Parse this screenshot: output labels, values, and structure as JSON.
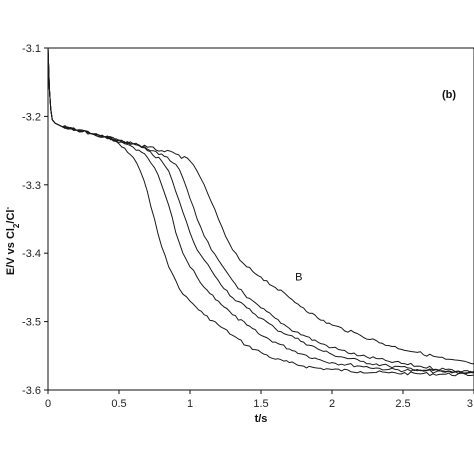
{
  "chart_data": {
    "type": "line",
    "panel_label": "(b)",
    "xlabel": "t/s",
    "ylabel_main": "E/V vs Cl",
    "ylabel_sub": "2",
    "ylabel_tail": "/Cl",
    "ylabel_sup": "-",
    "xlim": [
      0,
      3
    ],
    "ylim": [
      -3.6,
      -3.1
    ],
    "x_ticks": [
      0,
      0.5,
      1,
      1.5,
      2,
      2.5,
      3
    ],
    "x_tick_labels": [
      "0",
      "0.5",
      "1",
      "1.5",
      "2",
      "2.5",
      "3"
    ],
    "y_ticks": [
      -3.6,
      -3.5,
      -3.4,
      -3.3,
      -3.2,
      -3.1
    ],
    "y_tick_labels": [
      "-3.6",
      "-3.5",
      "-3.4",
      "-3.3",
      "-3.2",
      "-3.1"
    ],
    "grid": false,
    "annotation": {
      "text": "B",
      "x": 1.74,
      "y": -3.44
    },
    "series": [
      {
        "x": [
          0,
          0.01,
          0.02,
          0.03,
          0.05,
          0.1,
          0.2,
          0.3,
          0.4,
          0.5,
          0.6,
          0.65,
          0.7,
          0.75,
          0.8,
          0.85,
          0.9,
          0.95,
          1.0,
          1.1,
          1.2,
          1.3,
          1.4,
          1.5,
          1.6,
          1.7,
          1.8,
          1.9,
          2.0,
          2.2,
          2.4,
          2.6,
          2.8,
          3.0
        ],
        "y": [
          -3.1,
          -3.16,
          -3.19,
          -3.205,
          -3.21,
          -3.215,
          -3.22,
          -3.225,
          -3.23,
          -3.24,
          -3.26,
          -3.28,
          -3.31,
          -3.35,
          -3.39,
          -3.42,
          -3.44,
          -3.46,
          -3.47,
          -3.49,
          -3.505,
          -3.52,
          -3.535,
          -3.545,
          -3.555,
          -3.56,
          -3.565,
          -3.568,
          -3.57,
          -3.573,
          -3.575,
          -3.576,
          -3.577,
          -3.578
        ]
      },
      {
        "x": [
          0,
          0.01,
          0.02,
          0.03,
          0.05,
          0.1,
          0.2,
          0.3,
          0.4,
          0.5,
          0.6,
          0.7,
          0.75,
          0.8,
          0.85,
          0.9,
          0.95,
          1.0,
          1.05,
          1.1,
          1.2,
          1.3,
          1.4,
          1.5,
          1.6,
          1.7,
          1.8,
          1.9,
          2.0,
          2.2,
          2.4,
          2.6,
          2.8,
          3.0
        ],
        "y": [
          -3.1,
          -3.16,
          -3.19,
          -3.205,
          -3.21,
          -3.215,
          -3.22,
          -3.225,
          -3.23,
          -3.238,
          -3.245,
          -3.26,
          -3.275,
          -3.3,
          -3.33,
          -3.37,
          -3.4,
          -3.42,
          -3.435,
          -3.45,
          -3.47,
          -3.49,
          -3.505,
          -3.52,
          -3.53,
          -3.54,
          -3.548,
          -3.555,
          -3.56,
          -3.565,
          -3.57,
          -3.572,
          -3.574,
          -3.575
        ]
      },
      {
        "x": [
          0,
          0.01,
          0.02,
          0.03,
          0.05,
          0.1,
          0.2,
          0.3,
          0.4,
          0.5,
          0.6,
          0.7,
          0.8,
          0.85,
          0.9,
          0.95,
          1.0,
          1.05,
          1.1,
          1.15,
          1.2,
          1.3,
          1.4,
          1.5,
          1.6,
          1.7,
          1.8,
          1.9,
          2.0,
          2.2,
          2.4,
          2.6,
          2.8,
          3.0
        ],
        "y": [
          -3.1,
          -3.16,
          -3.19,
          -3.205,
          -3.21,
          -3.215,
          -3.22,
          -3.225,
          -3.23,
          -3.235,
          -3.24,
          -3.25,
          -3.265,
          -3.28,
          -3.31,
          -3.34,
          -3.37,
          -3.395,
          -3.41,
          -3.425,
          -3.44,
          -3.465,
          -3.48,
          -3.495,
          -3.51,
          -3.52,
          -3.53,
          -3.54,
          -3.548,
          -3.558,
          -3.565,
          -3.57,
          -3.573,
          -3.575
        ]
      },
      {
        "x": [
          0,
          0.01,
          0.02,
          0.03,
          0.05,
          0.1,
          0.2,
          0.3,
          0.4,
          0.5,
          0.6,
          0.7,
          0.8,
          0.9,
          0.95,
          1.0,
          1.05,
          1.1,
          1.15,
          1.2,
          1.25,
          1.3,
          1.4,
          1.5,
          1.6,
          1.7,
          1.8,
          1.9,
          2.0,
          2.2,
          2.4,
          2.6,
          2.8,
          3.0
        ],
        "y": [
          -3.1,
          -3.16,
          -3.19,
          -3.205,
          -3.21,
          -3.215,
          -3.22,
          -3.225,
          -3.23,
          -3.235,
          -3.24,
          -3.248,
          -3.255,
          -3.27,
          -3.29,
          -3.32,
          -3.35,
          -3.375,
          -3.395,
          -3.41,
          -3.425,
          -3.44,
          -3.465,
          -3.48,
          -3.495,
          -3.51,
          -3.52,
          -3.53,
          -3.538,
          -3.55,
          -3.558,
          -3.565,
          -3.57,
          -3.573
        ]
      },
      {
        "x": [
          0,
          0.01,
          0.02,
          0.03,
          0.05,
          0.1,
          0.2,
          0.3,
          0.4,
          0.5,
          0.6,
          0.7,
          0.8,
          0.9,
          1.0,
          1.05,
          1.1,
          1.15,
          1.2,
          1.25,
          1.3,
          1.35,
          1.4,
          1.5,
          1.6,
          1.7,
          1.8,
          1.9,
          2.0,
          2.2,
          2.4,
          2.6,
          2.8,
          3.0
        ],
        "y": [
          -3.1,
          -3.16,
          -3.19,
          -3.205,
          -3.21,
          -3.215,
          -3.22,
          -3.225,
          -3.23,
          -3.235,
          -3.24,
          -3.245,
          -3.25,
          -3.255,
          -3.265,
          -3.28,
          -3.3,
          -3.325,
          -3.35,
          -3.375,
          -3.395,
          -3.41,
          -3.42,
          -3.435,
          -3.45,
          -3.465,
          -3.48,
          -3.495,
          -3.505,
          -3.52,
          -3.535,
          -3.545,
          -3.555,
          -3.562
        ]
      }
    ]
  }
}
